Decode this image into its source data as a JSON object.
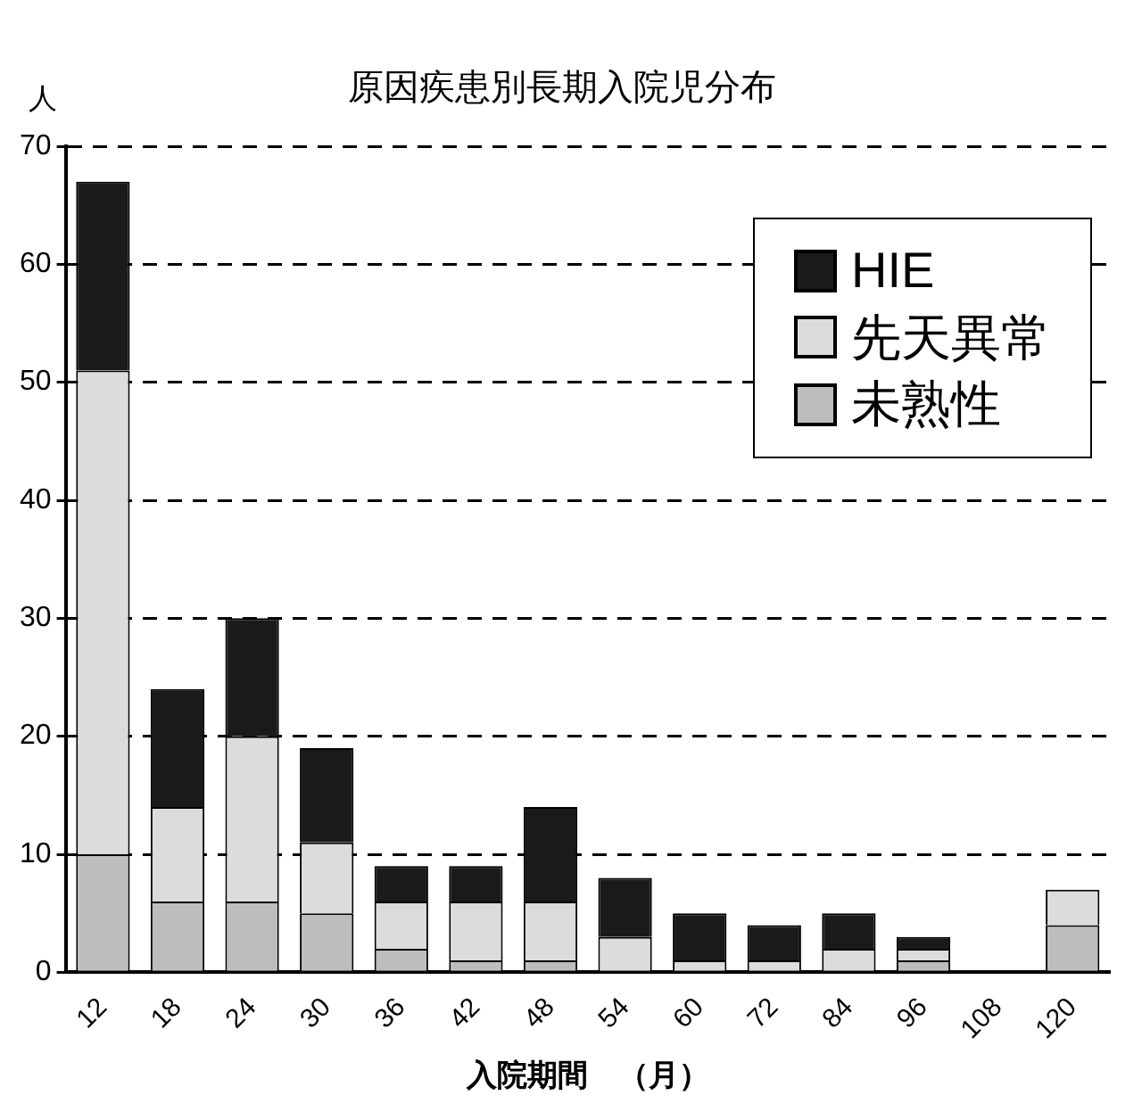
{
  "chart_data": {
    "type": "bar",
    "title": "原因疾患別長期入院児分布",
    "xlabel": "入院期間　（月）",
    "ylabel": "人",
    "categories": [
      "12",
      "18",
      "24",
      "30",
      "36",
      "42",
      "48",
      "54",
      "60",
      "72",
      "84",
      "96",
      "108",
      "120"
    ],
    "series": [
      {
        "name": "未熟性",
        "color": "#bdbdbd",
        "values": [
          10,
          6,
          6,
          5,
          2,
          1,
          1,
          0,
          0,
          0,
          0,
          1,
          0,
          4
        ]
      },
      {
        "name": "先天異常",
        "color": "#dcdcdc",
        "values": [
          41,
          8,
          14,
          6,
          4,
          5,
          5,
          3,
          1,
          1,
          2,
          1,
          0,
          3
        ]
      },
      {
        "name": "HIE",
        "color": "#1a1a1a",
        "values": [
          16,
          10,
          10,
          8,
          3,
          3,
          8,
          5,
          4,
          3,
          3,
          1,
          0,
          0
        ]
      }
    ],
    "stacked": true,
    "ylim": [
      0,
      70
    ],
    "yticks": [
      0,
      10,
      20,
      30,
      40,
      50,
      60,
      70
    ],
    "grid": "y",
    "legend": "top right"
  }
}
